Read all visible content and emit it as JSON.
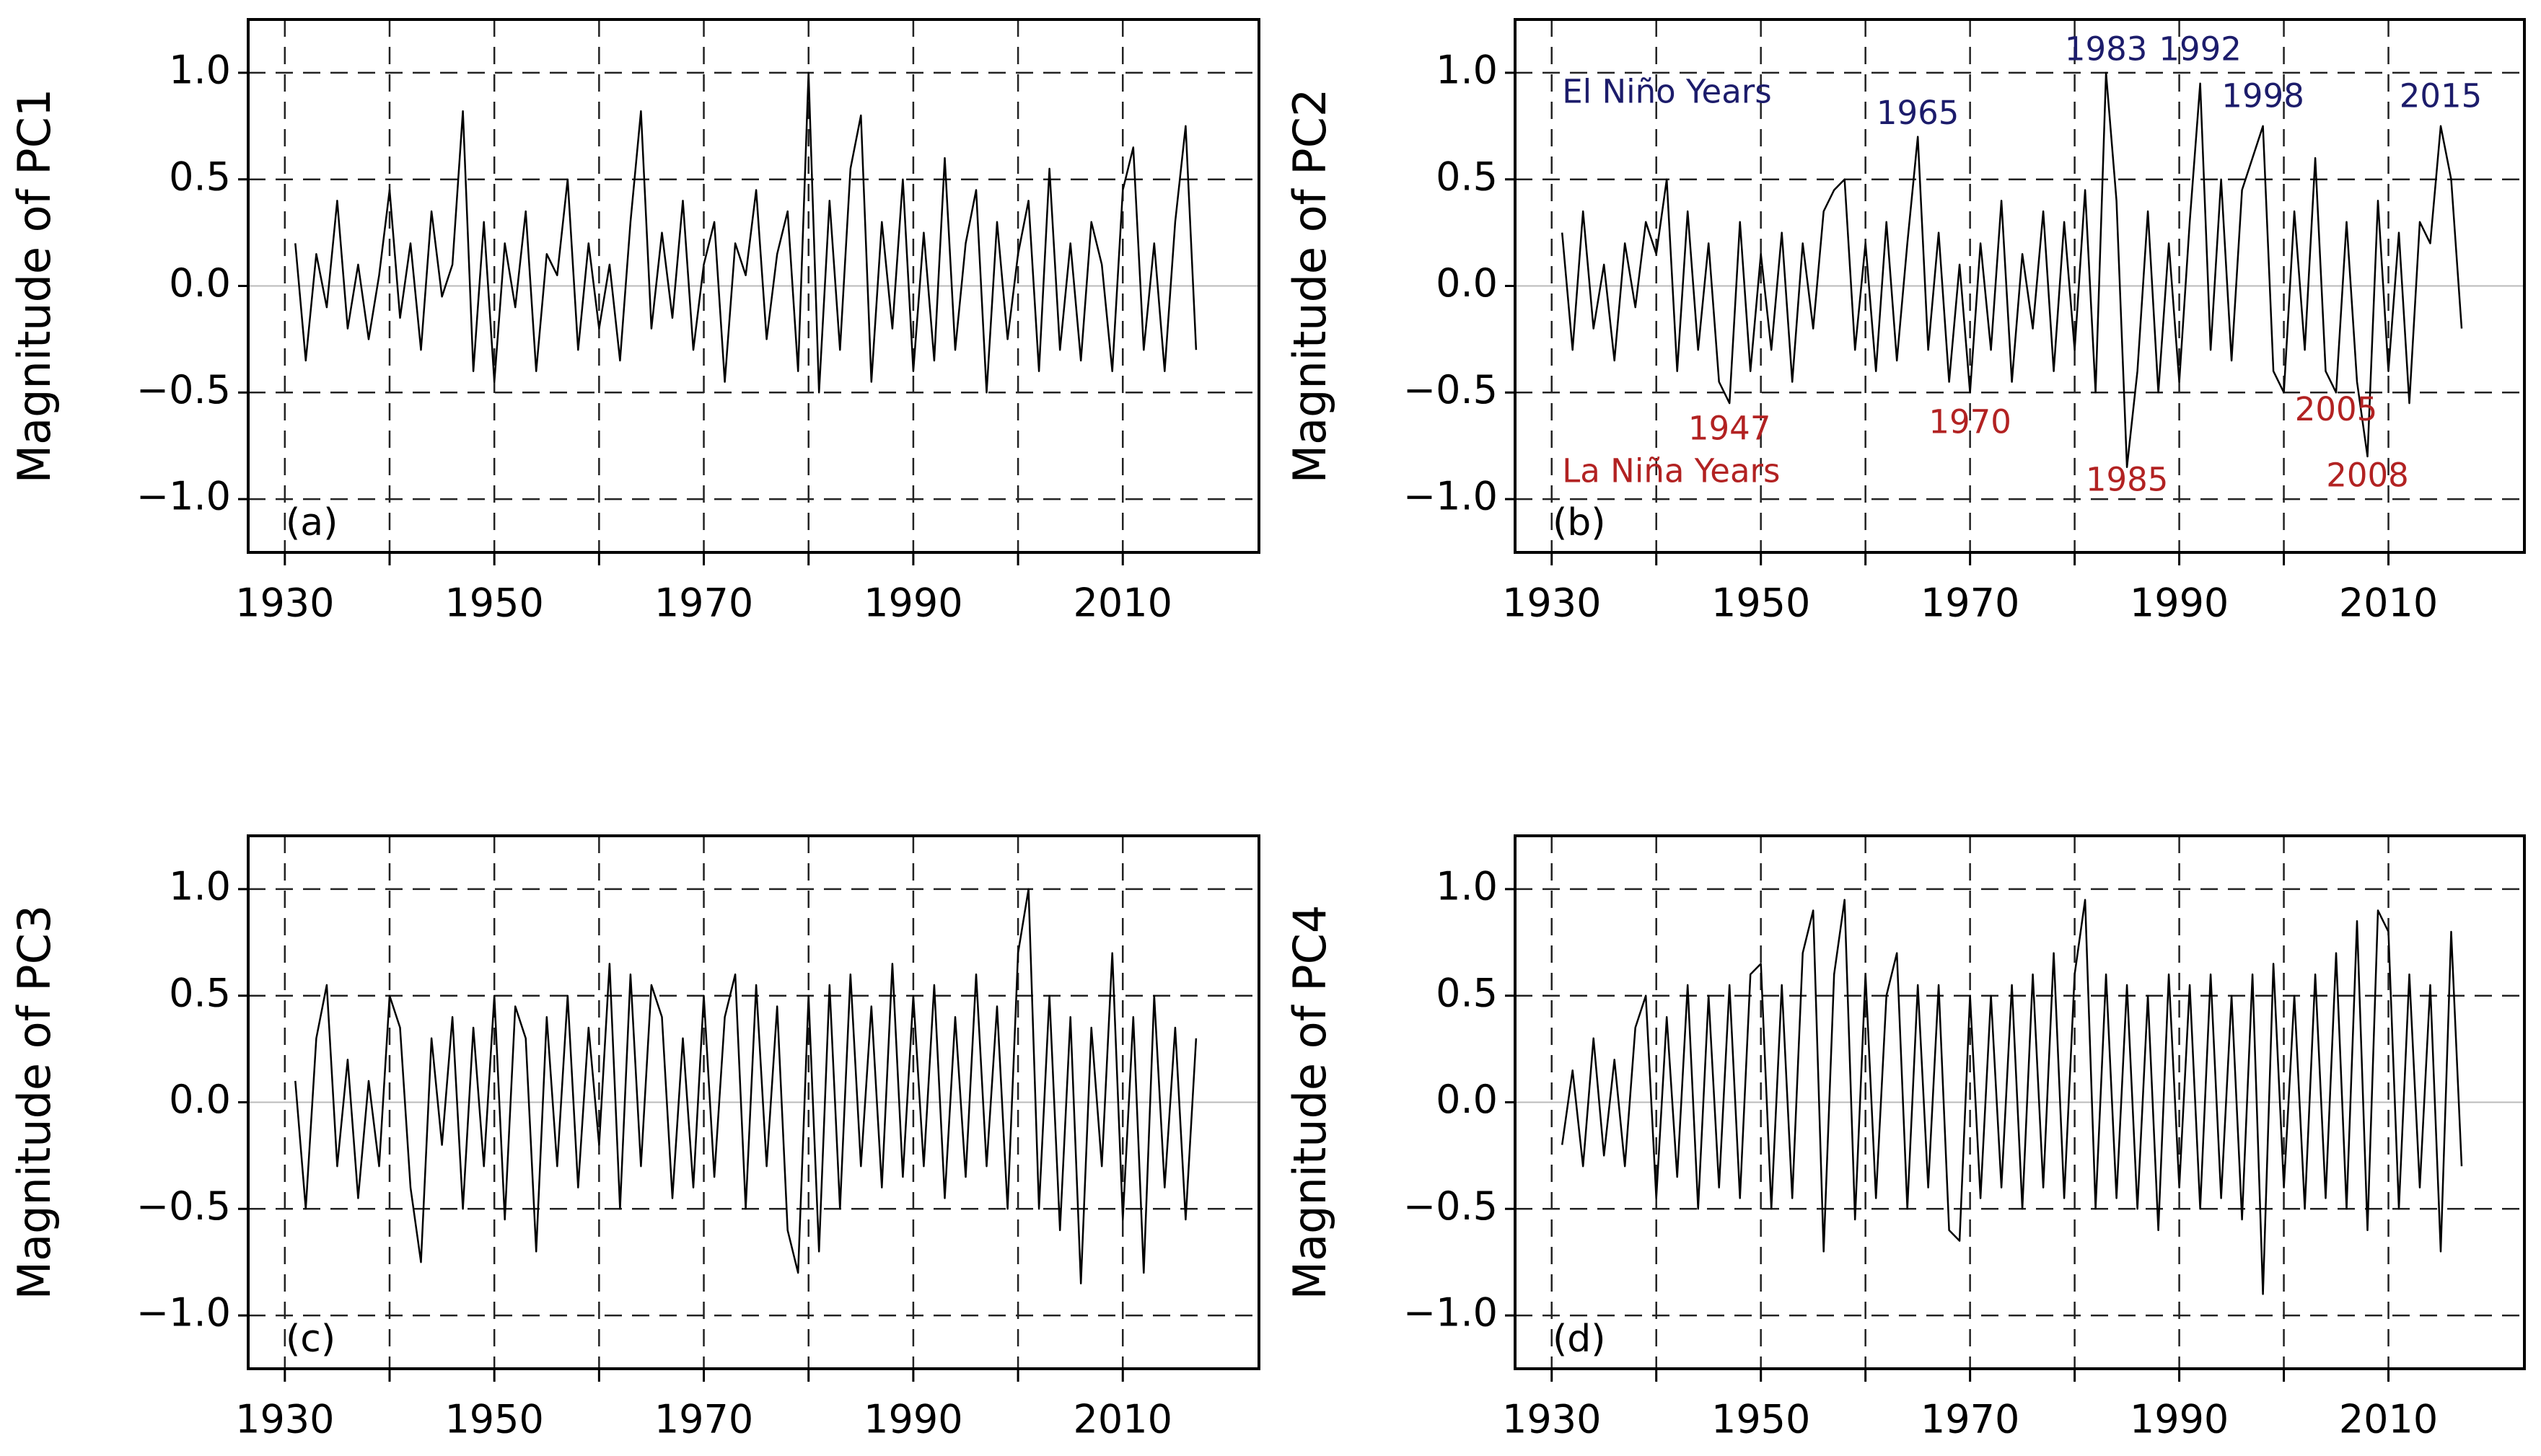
{
  "chart_data": [
    {
      "type": "line",
      "ylabel": "Magnitude of PC1",
      "panel_label": "(a)",
      "color": "#000000",
      "grid": true,
      "xlim": [
        1926.5,
        2023
      ],
      "ylim": [
        -1.25,
        1.25
      ],
      "xticks": [
        1930,
        1950,
        1970,
        1990,
        2010
      ],
      "xminor": [
        1940,
        1960,
        1980,
        2000
      ],
      "yticks": [
        {
          "value": -1,
          "label": "−1.0"
        },
        {
          "value": -0.5,
          "label": "−0.5"
        },
        {
          "value": 0,
          "label": "0.0"
        },
        0.5,
        {
          "value": 1,
          "label": "1.0"
        }
      ],
      "x": [
        1931,
        1932,
        1933,
        1934,
        1935,
        1936,
        1937,
        1938,
        1939,
        1940,
        1941,
        1942,
        1943,
        1944,
        1945,
        1946,
        1947,
        1948,
        1949,
        1950,
        1951,
        1952,
        1953,
        1954,
        1955,
        1956,
        1957,
        1958,
        1959,
        1960,
        1961,
        1962,
        1963,
        1964,
        1965,
        1966,
        1967,
        1968,
        1969,
        1970,
        1971,
        1972,
        1973,
        1974,
        1975,
        1976,
        1977,
        1978,
        1979,
        1980,
        1981,
        1982,
        1983,
        1984,
        1985,
        1986,
        1987,
        1988,
        1989,
        1990,
        1991,
        1992,
        1993,
        1994,
        1995,
        1996,
        1997,
        1998,
        1999,
        2000,
        2001,
        2002,
        2003,
        2004,
        2005,
        2006,
        2007,
        2008,
        2009,
        2010,
        2011,
        2012,
        2013,
        2014,
        2015,
        2016,
        2017
      ],
      "values": [
        0.2,
        -0.35,
        0.15,
        -0.1,
        0.4,
        -0.2,
        0.1,
        -0.25,
        0.05,
        0.45,
        -0.15,
        0.2,
        -0.3,
        0.35,
        -0.05,
        0.1,
        0.82,
        -0.4,
        0.3,
        -0.45,
        0.2,
        -0.1,
        0.35,
        -0.4,
        0.15,
        0.05,
        0.5,
        -0.3,
        0.2,
        -0.2,
        0.1,
        -0.35,
        0.3,
        0.82,
        -0.2,
        0.25,
        -0.15,
        0.4,
        -0.3,
        0.1,
        0.3,
        -0.45,
        0.2,
        0.05,
        0.45,
        -0.25,
        0.15,
        0.35,
        -0.4,
        1.0,
        -0.5,
        0.4,
        -0.3,
        0.55,
        0.8,
        -0.45,
        0.3,
        -0.2,
        0.5,
        -0.4,
        0.25,
        -0.35,
        0.6,
        -0.3,
        0.2,
        0.45,
        -0.5,
        0.3,
        -0.25,
        0.15,
        0.4,
        -0.4,
        0.55,
        -0.3,
        0.2,
        -0.35,
        0.3,
        0.1,
        -0.4,
        0.45,
        0.65,
        -0.3,
        0.2,
        -0.4,
        0.3,
        0.75,
        -0.3
      ]
    },
    {
      "type": "line",
      "ylabel": "Magnitude of PC2",
      "panel_label": "(b)",
      "color": "#000000",
      "grid": true,
      "xlim": [
        1926.5,
        2023
      ],
      "ylim": [
        -1.25,
        1.25
      ],
      "xticks": [
        1930,
        1950,
        1970,
        1990,
        2010
      ],
      "xminor": [
        1940,
        1960,
        1980,
        2000
      ],
      "yticks": [
        {
          "value": -1,
          "label": "−1.0"
        },
        {
          "value": -0.5,
          "label": "−0.5"
        },
        {
          "value": 0,
          "label": "0.0"
        },
        0.5,
        {
          "value": 1,
          "label": "1.0"
        }
      ],
      "x": [
        1931,
        1932,
        1933,
        1934,
        1935,
        1936,
        1937,
        1938,
        1939,
        1940,
        1941,
        1942,
        1943,
        1944,
        1945,
        1946,
        1947,
        1948,
        1949,
        1950,
        1951,
        1952,
        1953,
        1954,
        1955,
        1956,
        1957,
        1958,
        1959,
        1960,
        1961,
        1962,
        1963,
        1964,
        1965,
        1966,
        1967,
        1968,
        1969,
        1970,
        1971,
        1972,
        1973,
        1974,
        1975,
        1976,
        1977,
        1978,
        1979,
        1980,
        1981,
        1982,
        1983,
        1984,
        1985,
        1986,
        1987,
        1988,
        1989,
        1990,
        1991,
        1992,
        1993,
        1994,
        1995,
        1996,
        1997,
        1998,
        1999,
        2000,
        2001,
        2002,
        2003,
        2004,
        2005,
        2006,
        2007,
        2008,
        2009,
        2010,
        2011,
        2012,
        2013,
        2014,
        2015,
        2016,
        2017
      ],
      "values": [
        0.25,
        -0.3,
        0.35,
        -0.2,
        0.1,
        -0.35,
        0.2,
        -0.1,
        0.3,
        0.15,
        0.5,
        -0.4,
        0.35,
        -0.3,
        0.2,
        -0.45,
        -0.55,
        0.3,
        -0.4,
        0.15,
        -0.3,
        0.25,
        -0.45,
        0.2,
        -0.2,
        0.35,
        0.45,
        0.5,
        -0.3,
        0.2,
        -0.4,
        0.3,
        -0.35,
        0.2,
        0.7,
        -0.3,
        0.25,
        -0.45,
        0.1,
        -0.5,
        0.2,
        -0.3,
        0.4,
        -0.45,
        0.15,
        -0.2,
        0.35,
        -0.4,
        0.3,
        -0.3,
        0.45,
        -0.5,
        1.0,
        0.4,
        -0.85,
        -0.4,
        0.35,
        -0.5,
        0.2,
        -0.45,
        0.3,
        0.95,
        -0.3,
        0.5,
        -0.35,
        0.45,
        0.6,
        0.75,
        -0.4,
        -0.5,
        0.35,
        -0.3,
        0.6,
        -0.4,
        -0.5,
        0.3,
        -0.45,
        -0.8,
        0.4,
        -0.4,
        0.25,
        -0.55,
        0.3,
        0.2,
        0.75,
        0.5,
        -0.2
      ],
      "annotations": [
        {
          "text": "El Niño Years",
          "x": 1931,
          "y": 0.9,
          "color": "#1c1c6b",
          "anchor": "start"
        },
        {
          "text": "La Niña Years",
          "x": 1931,
          "y": -0.88,
          "color": "#b22222",
          "anchor": "start"
        },
        {
          "text": "1965",
          "x": 1965,
          "y": 0.8,
          "color": "#1c1c6b",
          "anchor": "middle"
        },
        {
          "text": "1983",
          "x": 1983,
          "y": 1.1,
          "color": "#1c1c6b",
          "anchor": "middle"
        },
        {
          "text": "1992",
          "x": 1992,
          "y": 1.1,
          "color": "#1c1c6b",
          "anchor": "middle"
        },
        {
          "text": "1998",
          "x": 1998,
          "y": 0.88,
          "color": "#1c1c6b",
          "anchor": "middle"
        },
        {
          "text": "2015",
          "x": 2015,
          "y": 0.88,
          "color": "#1c1c6b",
          "anchor": "middle"
        },
        {
          "text": "1947",
          "x": 1947,
          "y": -0.68,
          "color": "#b22222",
          "anchor": "middle"
        },
        {
          "text": "1970",
          "x": 1970,
          "y": -0.65,
          "color": "#b22222",
          "anchor": "middle"
        },
        {
          "text": "1985",
          "x": 1985,
          "y": -0.92,
          "color": "#b22222",
          "anchor": "middle"
        },
        {
          "text": "2005",
          "x": 2005,
          "y": -0.59,
          "color": "#b22222",
          "anchor": "middle"
        },
        {
          "text": "2008",
          "x": 2008,
          "y": -0.9,
          "color": "#b22222",
          "anchor": "middle"
        }
      ]
    },
    {
      "type": "line",
      "ylabel": "Magnitude of PC3",
      "panel_label": "(c)",
      "color": "#000000",
      "grid": true,
      "xlim": [
        1926.5,
        2023
      ],
      "ylim": [
        -1.25,
        1.25
      ],
      "xticks": [
        1930,
        1950,
        1970,
        1990,
        2010
      ],
      "xminor": [
        1940,
        1960,
        1980,
        2000
      ],
      "yticks": [
        {
          "value": -1,
          "label": "−1.0"
        },
        {
          "value": -0.5,
          "label": "−0.5"
        },
        {
          "value": 0,
          "label": "0.0"
        },
        0.5,
        {
          "value": 1,
          "label": "1.0"
        }
      ],
      "x": [
        1931,
        1932,
        1933,
        1934,
        1935,
        1936,
        1937,
        1938,
        1939,
        1940,
        1941,
        1942,
        1943,
        1944,
        1945,
        1946,
        1947,
        1948,
        1949,
        1950,
        1951,
        1952,
        1953,
        1954,
        1955,
        1956,
        1957,
        1958,
        1959,
        1960,
        1961,
        1962,
        1963,
        1964,
        1965,
        1966,
        1967,
        1968,
        1969,
        1970,
        1971,
        1972,
        1973,
        1974,
        1975,
        1976,
        1977,
        1978,
        1979,
        1980,
        1981,
        1982,
        1983,
        1984,
        1985,
        1986,
        1987,
        1988,
        1989,
        1990,
        1991,
        1992,
        1993,
        1994,
        1995,
        1996,
        1997,
        1998,
        1999,
        2000,
        2001,
        2002,
        2003,
        2004,
        2005,
        2006,
        2007,
        2008,
        2009,
        2010,
        2011,
        2012,
        2013,
        2014,
        2015,
        2016,
        2017
      ],
      "values": [
        0.1,
        -0.5,
        0.3,
        0.55,
        -0.3,
        0.2,
        -0.45,
        0.1,
        -0.3,
        0.5,
        0.35,
        -0.4,
        -0.75,
        0.3,
        -0.2,
        0.4,
        -0.5,
        0.35,
        -0.3,
        0.5,
        -0.55,
        0.45,
        0.3,
        -0.7,
        0.4,
        -0.3,
        0.5,
        -0.4,
        0.35,
        -0.2,
        0.65,
        -0.5,
        0.6,
        -0.3,
        0.55,
        0.4,
        -0.45,
        0.3,
        -0.4,
        0.5,
        -0.35,
        0.4,
        0.6,
        -0.5,
        0.55,
        -0.3,
        0.45,
        -0.6,
        -0.8,
        0.5,
        -0.7,
        0.55,
        -0.5,
        0.6,
        -0.3,
        0.45,
        -0.4,
        0.65,
        -0.35,
        0.5,
        -0.3,
        0.55,
        -0.45,
        0.4,
        -0.35,
        0.6,
        -0.3,
        0.45,
        -0.5,
        0.7,
        1.0,
        -0.5,
        0.5,
        -0.6,
        0.4,
        -0.85,
        0.35,
        -0.3,
        0.7,
        -0.55,
        0.4,
        -0.8,
        0.5,
        -0.4,
        0.35,
        -0.55,
        0.3
      ]
    },
    {
      "type": "line",
      "ylabel": "Magnitude of PC4",
      "panel_label": "(d)",
      "color": "#000000",
      "grid": true,
      "xlim": [
        1926.5,
        2023
      ],
      "ylim": [
        -1.25,
        1.25
      ],
      "xticks": [
        1930,
        1950,
        1970,
        1990,
        2010
      ],
      "xminor": [
        1940,
        1960,
        1980,
        2000
      ],
      "yticks": [
        {
          "value": -1,
          "label": "−1.0"
        },
        {
          "value": -0.5,
          "label": "−0.5"
        },
        {
          "value": 0,
          "label": "0.0"
        },
        0.5,
        {
          "value": 1,
          "label": "1.0"
        }
      ],
      "x": [
        1931,
        1932,
        1933,
        1934,
        1935,
        1936,
        1937,
        1938,
        1939,
        1940,
        1941,
        1942,
        1943,
        1944,
        1945,
        1946,
        1947,
        1948,
        1949,
        1950,
        1951,
        1952,
        1953,
        1954,
        1955,
        1956,
        1957,
        1958,
        1959,
        1960,
        1961,
        1962,
        1963,
        1964,
        1965,
        1966,
        1967,
        1968,
        1969,
        1970,
        1971,
        1972,
        1973,
        1974,
        1975,
        1976,
        1977,
        1978,
        1979,
        1980,
        1981,
        1982,
        1983,
        1984,
        1985,
        1986,
        1987,
        1988,
        1989,
        1990,
        1991,
        1992,
        1993,
        1994,
        1995,
        1996,
        1997,
        1998,
        1999,
        2000,
        2001,
        2002,
        2003,
        2004,
        2005,
        2006,
        2007,
        2008,
        2009,
        2010,
        2011,
        2012,
        2013,
        2014,
        2015,
        2016,
        2017
      ],
      "values": [
        -0.2,
        0.15,
        -0.3,
        0.3,
        -0.25,
        0.2,
        -0.3,
        0.35,
        0.5,
        -0.45,
        0.4,
        -0.35,
        0.55,
        -0.5,
        0.5,
        -0.4,
        0.55,
        -0.45,
        0.6,
        0.65,
        -0.5,
        0.55,
        -0.45,
        0.7,
        0.9,
        -0.7,
        0.6,
        0.95,
        -0.55,
        0.6,
        -0.45,
        0.5,
        0.7,
        -0.5,
        0.55,
        -0.4,
        0.55,
        -0.6,
        -0.65,
        0.5,
        -0.45,
        0.5,
        -0.4,
        0.55,
        -0.5,
        0.6,
        -0.4,
        0.7,
        -0.45,
        0.6,
        0.95,
        -0.5,
        0.6,
        -0.45,
        0.55,
        -0.5,
        0.5,
        -0.6,
        0.6,
        -0.4,
        0.55,
        -0.5,
        0.6,
        -0.45,
        0.5,
        -0.55,
        0.6,
        -0.9,
        0.65,
        -0.4,
        0.5,
        -0.5,
        0.6,
        -0.45,
        0.7,
        -0.5,
        0.85,
        -0.6,
        0.9,
        0.8,
        -0.5,
        0.6,
        -0.4,
        0.55,
        -0.7,
        0.8,
        -0.3
      ]
    }
  ]
}
